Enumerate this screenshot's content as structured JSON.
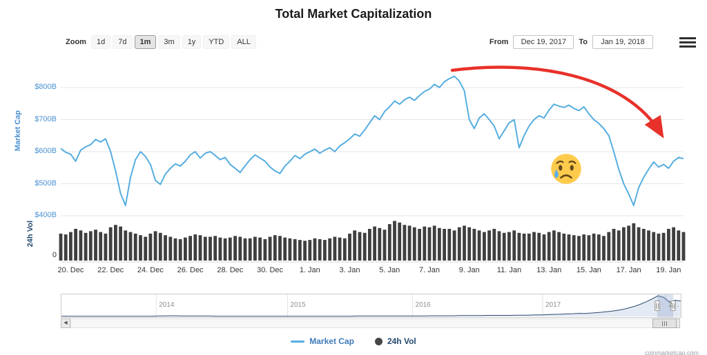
{
  "title": "Total Market Capitalization",
  "toolbar": {
    "zoom_label": "Zoom",
    "zoom_buttons": [
      {
        "label": "1d",
        "selected": false
      },
      {
        "label": "7d",
        "selected": false
      },
      {
        "label": "1m",
        "selected": true
      },
      {
        "label": "3m",
        "selected": false
      },
      {
        "label": "1y",
        "selected": false
      },
      {
        "label": "YTD",
        "selected": false
      },
      {
        "label": "ALL",
        "selected": false
      }
    ],
    "from_label": "From",
    "from_value": "Dec 19, 2017",
    "to_label": "To",
    "to_value": "Jan 19, 2018"
  },
  "chart_data": {
    "type": "line",
    "title": "Total Market Capitalization",
    "x_range": [
      "Dec 19, 2017",
      "Jan 19, 2018"
    ],
    "points_per_day": 4,
    "grid": "horizontal",
    "y_axis": {
      "title": "Market Cap",
      "tick_labels": [
        "$400B",
        "$500B",
        "$600B",
        "$700B",
        "$800B"
      ],
      "tick_values": [
        400,
        500,
        600,
        700,
        800
      ],
      "ylim": [
        395,
        850
      ],
      "color": "#4a90d2"
    },
    "volume_axis": {
      "title": "24h Vol",
      "tick_labels": [
        "0"
      ],
      "color": "#24496e"
    },
    "x_tick_labels": [
      "20. Dec",
      "22. Dec",
      "24. Dec",
      "26. Dec",
      "28. Dec",
      "30. Dec",
      "1. Jan",
      "3. Jan",
      "5. Jan",
      "7. Jan",
      "9. Jan",
      "11. Jan",
      "13. Jan",
      "15. Jan",
      "17. Jan",
      "19. Jan"
    ],
    "series": [
      {
        "name": "Market Cap",
        "type": "line",
        "color": "#55ade0",
        "unit": "billions_usd",
        "values": [
          610,
          598,
          592,
          570,
          605,
          615,
          622,
          638,
          630,
          640,
          600,
          540,
          470,
          432,
          520,
          575,
          600,
          585,
          560,
          510,
          498,
          530,
          548,
          562,
          555,
          570,
          590,
          600,
          580,
          595,
          600,
          588,
          575,
          582,
          560,
          548,
          535,
          556,
          575,
          590,
          580,
          570,
          552,
          540,
          532,
          555,
          570,
          588,
          578,
          592,
          600,
          608,
          595,
          605,
          612,
          600,
          618,
          628,
          640,
          655,
          648,
          668,
          690,
          712,
          700,
          725,
          740,
          758,
          748,
          762,
          770,
          760,
          775,
          788,
          795,
          810,
          800,
          818,
          828,
          835,
          820,
          790,
          700,
          672,
          705,
          718,
          700,
          680,
          640,
          665,
          690,
          700,
          612,
          650,
          680,
          700,
          712,
          705,
          730,
          748,
          742,
          738,
          745,
          735,
          728,
          740,
          718,
          700,
          688,
          672,
          650,
          600,
          545,
          500,
          468,
          432,
          488,
          520,
          545,
          568,
          552,
          560,
          548,
          570,
          582,
          578
        ]
      },
      {
        "name": "24h Vol",
        "type": "column",
        "color": "#3f3f3f",
        "unit": "billions_usd",
        "values": [
          34,
          33,
          36,
          40,
          38,
          35,
          37,
          39,
          36,
          34,
          42,
          45,
          43,
          38,
          36,
          34,
          32,
          30,
          34,
          37,
          35,
          32,
          30,
          28,
          27,
          29,
          31,
          33,
          32,
          30,
          30,
          31,
          29,
          28,
          29,
          31,
          30,
          28,
          28,
          30,
          29,
          27,
          30,
          32,
          31,
          29,
          28,
          27,
          26,
          25,
          26,
          28,
          27,
          26,
          28,
          30,
          29,
          28,
          34,
          38,
          36,
          35,
          40,
          43,
          41,
          39,
          46,
          50,
          48,
          45,
          44,
          42,
          40,
          43,
          42,
          44,
          41,
          40,
          40,
          38,
          42,
          44,
          42,
          40,
          38,
          36,
          38,
          40,
          37,
          35,
          36,
          38,
          35,
          34,
          34,
          36,
          35,
          33,
          36,
          38,
          36,
          34,
          33,
          32,
          31,
          33,
          32,
          34,
          33,
          31,
          36,
          40,
          38,
          42,
          44,
          47,
          42,
          40,
          38,
          36,
          34,
          35,
          40,
          42,
          38,
          36
        ]
      }
    ],
    "navigator": {
      "year_ticks": [
        {
          "label": "2014",
          "pos": 0.153
        },
        {
          "label": "2015",
          "pos": 0.365
        },
        {
          "label": "2016",
          "pos": 0.567
        },
        {
          "label": "2017",
          "pos": 0.777
        },
        {
          "label": "2…",
          "pos": 0.9755
        }
      ],
      "values": [
        1,
        1,
        1,
        1,
        1,
        1,
        1,
        1,
        1,
        1,
        1,
        1,
        1,
        1,
        1,
        1,
        1,
        2,
        2,
        3,
        3,
        2,
        2,
        2,
        2,
        2,
        2,
        1,
        1,
        1,
        1,
        1,
        1,
        1,
        1,
        1,
        1,
        1,
        1,
        1,
        1,
        1,
        1,
        1,
        1,
        1,
        1,
        1,
        1,
        1,
        1,
        1,
        2,
        2,
        2,
        2,
        2,
        2,
        2,
        2,
        2,
        2,
        2,
        2,
        2,
        3,
        3,
        3,
        3,
        3,
        4,
        4,
        4,
        4,
        4,
        5,
        5,
        5,
        5,
        5,
        6,
        6,
        6,
        7,
        7,
        8,
        9,
        10,
        11,
        12,
        13,
        15,
        14,
        16,
        18,
        20,
        23,
        26,
        30,
        35,
        42,
        50,
        60,
        72,
        85,
        100,
        92,
        70,
        78,
        74
      ],
      "selected_range": [
        0.962,
        0.988
      ]
    },
    "annotations": [
      {
        "type": "arrow",
        "color": "#e8312a",
        "description": "red curved arrow over the January crash"
      },
      {
        "type": "emoji",
        "name": "crying-face"
      }
    ]
  },
  "legend": {
    "items": [
      {
        "label": "Market Cap",
        "marker": "line",
        "color": "#55ade0"
      },
      {
        "label": "24h Vol",
        "marker": "circle",
        "color": "#474747"
      }
    ]
  },
  "watermark": "coinmarketcap.com"
}
